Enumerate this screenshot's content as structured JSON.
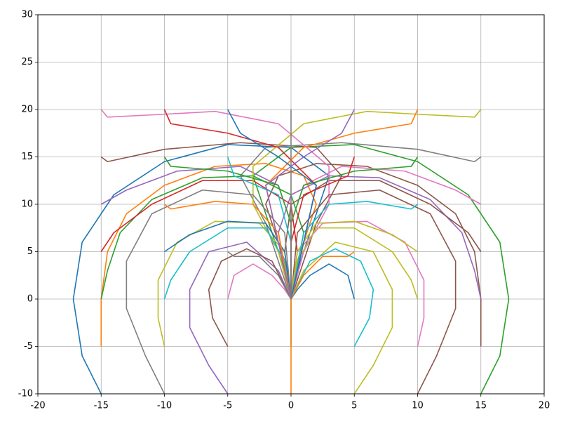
{
  "chart_data": {
    "type": "line",
    "xlim": [
      -20,
      20
    ],
    "ylim": [
      -10,
      30
    ],
    "xticks": [
      -20,
      -15,
      -10,
      -5,
      0,
      5,
      10,
      15,
      20
    ],
    "yticks": [
      -10,
      -5,
      0,
      5,
      10,
      15,
      20,
      25,
      30
    ],
    "grid": true,
    "series": [
      {
        "color": "#1f77b4",
        "x": [
          -15,
          -16.5,
          -17.2,
          -16.5,
          -14,
          -10,
          -5,
          0,
          3,
          2,
          0.5,
          0
        ],
        "y": [
          -10,
          -6,
          0,
          6,
          11,
          14.5,
          16.3,
          16,
          13,
          9,
          3,
          0
        ]
      },
      {
        "color": "#2ca02c",
        "x": [
          15,
          16.5,
          17.2,
          16.5,
          14,
          10,
          5,
          0,
          -3,
          -2,
          -0.5,
          0
        ],
        "y": [
          -10,
          -6,
          0,
          6,
          11,
          14.5,
          16.3,
          16,
          13,
          9,
          3,
          0
        ]
      },
      {
        "color": "#ff7f0e",
        "x": [
          -15,
          -15,
          -14.5,
          -13,
          -10,
          -6,
          -2,
          1,
          2,
          0.5,
          0
        ],
        "y": [
          -5,
          0,
          5,
          9,
          12,
          14,
          14.3,
          13,
          10,
          4,
          0
        ]
      },
      {
        "color": "#8c564b",
        "x": [
          15,
          15,
          14.5,
          13,
          10,
          6,
          2,
          -1,
          -2,
          -0.5,
          0
        ],
        "y": [
          -5,
          0,
          5,
          9,
          12,
          14,
          14.3,
          13,
          10,
          4,
          0
        ]
      },
      {
        "color": "#2ca02c",
        "x": [
          -15,
          -14.5,
          -13.5,
          -11,
          -7,
          -3,
          0,
          1,
          0
        ],
        "y": [
          0,
          3,
          7,
          10.5,
          12.8,
          13,
          11,
          7,
          0
        ]
      },
      {
        "color": "#9467bd",
        "x": [
          15,
          14.5,
          13.5,
          11,
          7,
          3,
          0,
          -1,
          0
        ],
        "y": [
          0,
          3,
          7,
          10.5,
          12.8,
          13,
          11,
          7,
          0
        ]
      },
      {
        "color": "#d62728",
        "x": [
          -15,
          -14,
          -11,
          -7,
          -3,
          0,
          0.5,
          0
        ],
        "y": [
          5,
          7,
          10,
          12.5,
          12.5,
          10,
          5,
          0
        ]
      },
      {
        "color": "#8c564b",
        "x": [
          15,
          14,
          11,
          7,
          3,
          0,
          -0.5,
          0
        ],
        "y": [
          5,
          7,
          10,
          12.5,
          12.5,
          10,
          5,
          0
        ]
      },
      {
        "color": "#9467bd",
        "x": [
          -15,
          -13,
          -9,
          -4,
          -1,
          0,
          0
        ],
        "y": [
          10,
          11.5,
          13.5,
          14,
          12,
          8,
          0
        ]
      },
      {
        "color": "#e377c2",
        "x": [
          15,
          13,
          9,
          4,
          1,
          0,
          0
        ],
        "y": [
          10,
          11.5,
          13.5,
          14,
          12,
          8,
          0
        ]
      },
      {
        "color": "#8c564b",
        "x": [
          -15,
          -14.5,
          -10,
          -4,
          2,
          4,
          2,
          0
        ],
        "y": [
          15,
          14.5,
          15.8,
          16.5,
          16,
          13,
          8,
          0
        ]
      },
      {
        "color": "#7f7f7f",
        "x": [
          15,
          14.5,
          10,
          4,
          -2,
          -4,
          -2,
          0
        ],
        "y": [
          15,
          14.5,
          15.8,
          16.5,
          16,
          13,
          8,
          0
        ]
      },
      {
        "color": "#e377c2",
        "x": [
          -15,
          -14.5,
          -10,
          -6,
          -1,
          3,
          3,
          1,
          0
        ],
        "y": [
          20,
          19.2,
          19.5,
          19.8,
          18.5,
          14,
          10,
          5,
          0
        ]
      },
      {
        "color": "#bcbd22",
        "x": [
          15,
          14.5,
          10,
          6,
          1,
          -3,
          -3,
          -1,
          0
        ],
        "y": [
          20,
          19.2,
          19.5,
          19.8,
          18.5,
          14,
          10,
          5,
          0
        ]
      },
      {
        "color": "#7f7f7f",
        "x": [
          -10,
          -11.5,
          -13,
          -13,
          -11,
          -7,
          -3,
          -0.5,
          0
        ],
        "y": [
          -10,
          -6,
          -1,
          4,
          9,
          11.5,
          11,
          7,
          0
        ]
      },
      {
        "color": "#8c564b",
        "x": [
          10,
          11.5,
          13,
          13,
          11,
          7,
          3,
          0.5,
          0
        ],
        "y": [
          -10,
          -6,
          -1,
          4,
          9,
          11.5,
          11,
          7,
          0
        ]
      },
      {
        "color": "#bcbd22",
        "x": [
          -10,
          -10.5,
          -10.5,
          -9,
          -6,
          -2.5,
          -0.5,
          0
        ],
        "y": [
          -5,
          -2,
          2,
          6,
          8.2,
          8,
          5,
          0
        ]
      },
      {
        "color": "#e377c2",
        "x": [
          10,
          10.5,
          10.5,
          9,
          6,
          2.5,
          0.5,
          0
        ],
        "y": [
          -5,
          -2,
          2,
          6,
          8.2,
          8,
          5,
          0
        ]
      },
      {
        "color": "#17becf",
        "x": [
          -10,
          -9.5,
          -8,
          -5,
          -2,
          -0.5,
          0
        ],
        "y": [
          0,
          2,
          5,
          7.5,
          7.5,
          4,
          0
        ]
      },
      {
        "color": "#bcbd22",
        "x": [
          10,
          9.5,
          8,
          5,
          2,
          0.5,
          0
        ],
        "y": [
          0,
          2,
          5,
          7.5,
          7.5,
          4,
          0
        ]
      },
      {
        "color": "#1f77b4",
        "x": [
          -10,
          -8,
          -5,
          -2,
          -0.5,
          0
        ],
        "y": [
          5,
          6.8,
          8.2,
          8,
          5,
          0
        ]
      },
      {
        "color": "#bcbd22",
        "x": [
          10,
          8,
          5,
          2,
          0.5,
          0
        ],
        "y": [
          5,
          6.8,
          8.2,
          8,
          5,
          0
        ]
      },
      {
        "color": "#ff7f0e",
        "x": [
          -10,
          -9.5,
          -6,
          -3,
          -1,
          0
        ],
        "y": [
          10,
          9.5,
          10.3,
          10,
          7,
          0
        ]
      },
      {
        "color": "#17becf",
        "x": [
          10,
          9.5,
          6,
          3,
          1,
          0
        ],
        "y": [
          10,
          9.5,
          10.3,
          10,
          7,
          0
        ]
      },
      {
        "color": "#2ca02c",
        "x": [
          -10,
          -9.5,
          -5,
          -1,
          0,
          0
        ],
        "y": [
          15,
          14,
          13.5,
          12,
          8,
          0
        ]
      },
      {
        "color": "#2ca02c",
        "x": [
          10,
          9.5,
          5,
          1,
          0,
          0
        ],
        "y": [
          15,
          14,
          13.5,
          12,
          8,
          0
        ]
      },
      {
        "color": "#d62728",
        "x": [
          -10,
          -9.5,
          -5,
          -1,
          2,
          1,
          0
        ],
        "y": [
          20,
          18.5,
          17.5,
          16,
          12,
          6,
          0
        ]
      },
      {
        "color": "#ff7f0e",
        "x": [
          10,
          9.5,
          5,
          1,
          -2,
          -1,
          0
        ],
        "y": [
          20,
          18.5,
          17.5,
          16,
          12,
          6,
          0
        ]
      },
      {
        "color": "#9467bd",
        "x": [
          -5,
          -6.5,
          -8,
          -8,
          -6.5,
          -3.5,
          -1,
          0
        ],
        "y": [
          -10,
          -7,
          -3,
          1,
          5,
          6,
          3,
          0
        ]
      },
      {
        "color": "#bcbd22",
        "x": [
          5,
          6.5,
          8,
          8,
          6.5,
          3.5,
          1,
          0
        ],
        "y": [
          -10,
          -7,
          -3,
          1,
          5,
          6,
          3,
          0
        ]
      },
      {
        "color": "#8c564b",
        "x": [
          -5,
          -6.2,
          -6.5,
          -5.5,
          -3.5,
          -1.5,
          0
        ],
        "y": [
          -5,
          -2,
          1,
          4,
          5.3,
          4,
          0
        ]
      },
      {
        "color": "#17becf",
        "x": [
          5,
          6.2,
          6.5,
          5.5,
          3.5,
          1.5,
          0
        ],
        "y": [
          -5,
          -2,
          1,
          4,
          5.3,
          4,
          0
        ]
      },
      {
        "color": "#e377c2",
        "x": [
          -5,
          -4.5,
          -3,
          -1.5,
          -0.5,
          0
        ],
        "y": [
          0,
          2.5,
          3.7,
          2.5,
          1,
          0
        ]
      },
      {
        "color": "#1f77b4",
        "x": [
          5,
          4.5,
          3,
          1.5,
          0.5,
          0
        ],
        "y": [
          0,
          2.5,
          3.7,
          2.5,
          1,
          0
        ]
      },
      {
        "color": "#7f7f7f",
        "x": [
          -5,
          -4.5,
          -2.5,
          -1,
          0
        ],
        "y": [
          5,
          4.5,
          4.5,
          2.5,
          0
        ]
      },
      {
        "color": "#ff7f0e",
        "x": [
          5,
          4.5,
          2.5,
          1,
          0
        ],
        "y": [
          5,
          4.5,
          4.5,
          2.5,
          0
        ]
      },
      {
        "color": "#17becf",
        "x": [
          -5,
          -4.5,
          -1,
          0,
          0
        ],
        "y": [
          15,
          13,
          11,
          6,
          0
        ]
      },
      {
        "color": "#d62728",
        "x": [
          5,
          4.5,
          1,
          0,
          0
        ],
        "y": [
          15,
          13,
          11,
          6,
          0
        ]
      },
      {
        "color": "#1f77b4",
        "x": [
          -5,
          -4,
          -1,
          2,
          1,
          0
        ],
        "y": [
          20,
          17.5,
          15,
          12,
          6,
          0
        ]
      },
      {
        "color": "#9467bd",
        "x": [
          5,
          4,
          1,
          -2,
          -1,
          0
        ],
        "y": [
          20,
          17.5,
          15,
          12,
          6,
          0
        ]
      },
      {
        "color": "#7f7f7f",
        "x": [
          0,
          0
        ],
        "y": [
          20,
          0
        ]
      },
      {
        "color": "#2ca02c",
        "x": [
          0,
          0
        ],
        "y": [
          -5,
          0
        ]
      },
      {
        "color": "#ff7f0e",
        "x": [
          0,
          0
        ],
        "y": [
          -10,
          0
        ]
      }
    ]
  }
}
